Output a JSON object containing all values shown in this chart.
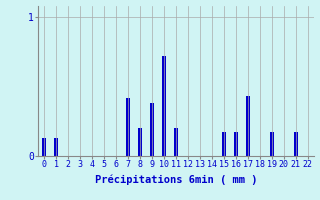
{
  "categories": [
    0,
    1,
    2,
    3,
    4,
    5,
    6,
    7,
    8,
    9,
    10,
    11,
    12,
    13,
    14,
    15,
    16,
    17,
    18,
    19,
    20,
    21,
    22
  ],
  "values": [
    0.13,
    0.13,
    0.0,
    0.0,
    0.0,
    0.0,
    0.0,
    0.42,
    0.2,
    0.38,
    0.72,
    0.2,
    0.0,
    0.0,
    0.0,
    0.17,
    0.17,
    0.43,
    0.0,
    0.17,
    0.0,
    0.17,
    0.0
  ],
  "bar_color": "#0000cc",
  "background_color": "#d0f4f4",
  "grid_color": "#aaaaaa",
  "xlabel": "Précipitations 6min ( mm )",
  "xlabel_color": "#0000cc",
  "ytick_labels": [
    "0",
    "1"
  ],
  "ytick_vals": [
    0,
    1
  ],
  "ylim": [
    0,
    1.08
  ],
  "xlim": [
    -0.5,
    22.5
  ],
  "bar_width": 0.35,
  "tick_color": "#0000cc",
  "axis_color": "#888888",
  "label_fontsize": 7,
  "tick_fontsize": 6,
  "xlabel_fontsize": 7.5
}
